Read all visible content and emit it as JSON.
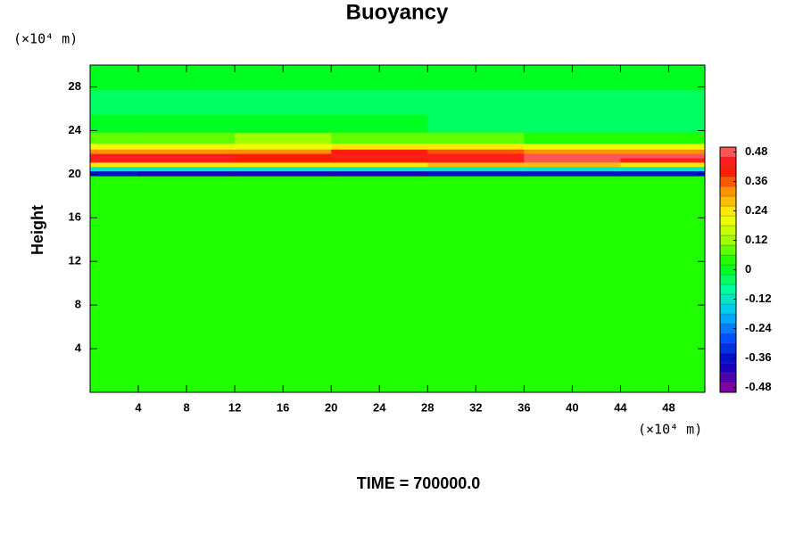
{
  "chart_data": {
    "type": "contour",
    "title": "Buoyancy",
    "ylabel": "Height",
    "y_unit_label": "(×10⁴ m)",
    "x_unit_label": "(×10⁴ m)",
    "footer": "TIME = 700000.0",
    "xlim": [
      0,
      51
    ],
    "ylim": [
      0,
      30
    ],
    "xticks": [
      4,
      8,
      12,
      16,
      20,
      24,
      28,
      32,
      36,
      40,
      44,
      48
    ],
    "yticks": [
      4,
      8,
      12,
      16,
      20,
      24,
      28
    ],
    "zlim": [
      -0.5,
      0.5
    ],
    "zticks": [
      -0.48,
      -0.36,
      -0.24,
      -0.12,
      0,
      0.12,
      0.24,
      0.36,
      0.48
    ],
    "colormap": [
      "#8000a0",
      "#0000c0",
      "#0050ff",
      "#00c0ff",
      "#00ffa0",
      "#00ff00",
      "#a0ff00",
      "#ffff00",
      "#ff9000",
      "#ff0000",
      "#ff9090"
    ],
    "x": [
      0,
      8,
      16,
      24,
      32,
      40,
      48
    ],
    "y": [
      0,
      10,
      19.6,
      20.1,
      20.5,
      20.9,
      21.3,
      21.7,
      22.1,
      22.5,
      23.2,
      24.5,
      26.5,
      29
    ],
    "z": [
      [
        0.01,
        0.01,
        0.01,
        0.01,
        0.01,
        0.01,
        0.01
      ],
      [
        0.0,
        0.01,
        0.01,
        0.02,
        0.02,
        0.01,
        0.0
      ],
      [
        0.02,
        0.02,
        0.02,
        0.02,
        0.02,
        0.02,
        0.02
      ],
      [
        -0.4,
        -0.42,
        -0.42,
        -0.42,
        -0.4,
        -0.4,
        -0.38
      ],
      [
        -0.14,
        -0.16,
        -0.16,
        -0.15,
        -0.14,
        -0.14,
        -0.14
      ],
      [
        0.2,
        0.22,
        0.22,
        0.2,
        0.24,
        0.24,
        0.22
      ],
      [
        0.4,
        0.4,
        0.38,
        0.36,
        0.4,
        0.44,
        0.42
      ],
      [
        0.42,
        0.4,
        0.38,
        0.4,
        0.42,
        0.46,
        0.44
      ],
      [
        0.3,
        0.3,
        0.28,
        0.36,
        0.34,
        0.3,
        0.3
      ],
      [
        0.16,
        0.18,
        0.16,
        0.22,
        0.2,
        0.18,
        0.16
      ],
      [
        0.04,
        0.06,
        0.08,
        0.06,
        0.04,
        0.02,
        0.02
      ],
      [
        -0.04,
        -0.04,
        -0.03,
        -0.04,
        -0.05,
        -0.05,
        -0.05
      ],
      [
        -0.06,
        -0.06,
        -0.06,
        -0.06,
        -0.06,
        -0.06,
        -0.06
      ],
      [
        -0.04,
        -0.04,
        -0.04,
        -0.04,
        -0.04,
        -0.04,
        -0.04
      ]
    ]
  }
}
